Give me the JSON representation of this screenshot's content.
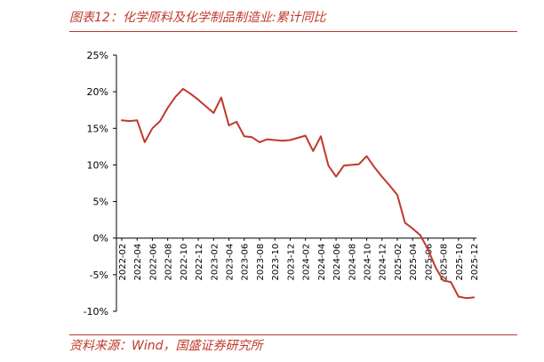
{
  "title": "图表12：化学原料及化学制品制造业:累计同比",
  "source": "资料来源：Wind，国盛证券研究所",
  "colors": {
    "accent": "#c0392b",
    "line": "#c0392b",
    "axis": "#000000"
  },
  "chart_data": {
    "type": "line",
    "title": "化学原料及化学制品制造业:累计同比",
    "xlabel": "",
    "ylabel": "",
    "ylim": [
      -0.1,
      0.25
    ],
    "yticks": [
      "25%",
      "20%",
      "15%",
      "10%",
      "5%",
      "0%",
      "-5%",
      "-10%"
    ],
    "ytick_values": [
      0.25,
      0.2,
      0.15,
      0.1,
      0.05,
      0.0,
      -0.05,
      -0.1
    ],
    "xtick_labels": [
      "2022-02",
      "2022-04",
      "2022-06",
      "2022-08",
      "2022-10",
      "2022-12",
      "2023-02",
      "2023-04",
      "2023-06",
      "2023-08",
      "2023-10",
      "2023-12",
      "2024-02",
      "2024-04",
      "2024-06",
      "2024-08",
      "2024-10",
      "2024-12",
      "2025-02",
      "2025-04",
      "2025-06",
      "2025-08",
      "2025-10",
      "2025-12"
    ],
    "grid": false,
    "legend": "none",
    "series": [
      {
        "x": [
          "2022-02",
          "2022-03",
          "2022-04",
          "2022-05",
          "2022-06",
          "2022-07",
          "2022-08",
          "2022-09",
          "2022-10",
          "2022-11",
          "2022-12",
          "2023-01",
          "2023-02",
          "2023-03",
          "2023-04",
          "2023-05",
          "2023-06",
          "2023-07",
          "2023-08",
          "2023-09",
          "2023-10",
          "2023-11",
          "2023-12",
          "2024-01",
          "2024-02",
          "2024-03",
          "2024-04",
          "2024-05",
          "2024-06",
          "2024-07",
          "2024-08",
          "2024-09",
          "2024-10",
          "2024-11",
          "2024-12",
          "2025-01",
          "2025-02",
          "2025-03",
          "2025-04",
          "2025-05",
          "2025-06",
          "2025-07",
          "2025-08",
          "2025-09",
          "2025-10",
          "2025-11",
          "2025-12"
        ],
        "values": [
          0.161,
          0.16,
          0.161,
          0.131,
          0.15,
          0.16,
          0.178,
          0.193,
          0.204,
          0.197,
          0.189,
          0.18,
          0.171,
          0.192,
          0.154,
          0.159,
          0.139,
          0.138,
          0.131,
          0.135,
          0.134,
          0.133,
          0.134,
          0.137,
          0.14,
          0.119,
          0.139,
          0.099,
          0.084,
          0.099,
          0.1,
          0.101,
          0.112,
          0.097,
          0.084,
          0.072,
          0.059,
          0.021,
          0.013,
          0.004,
          -0.015,
          -0.04,
          -0.058,
          -0.06,
          -0.08,
          -0.082,
          -0.081
        ]
      }
    ]
  }
}
